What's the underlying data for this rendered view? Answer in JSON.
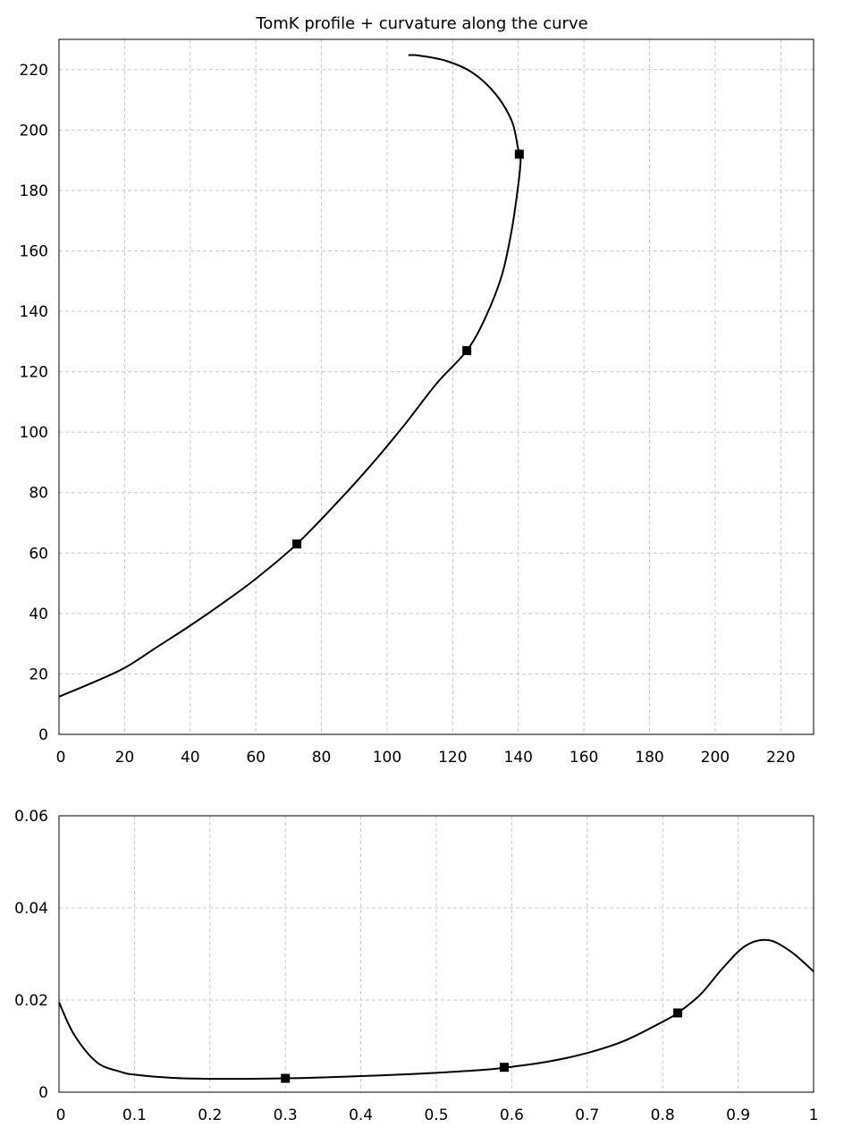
{
  "chart_data": [
    {
      "type": "line",
      "title": "TomK profile + curvature along the curve",
      "xlabel": "",
      "ylabel": "",
      "xlim": [
        0,
        230
      ],
      "ylim": [
        0,
        230
      ],
      "x_ticks": [
        "0",
        "20",
        "40",
        "60",
        "80",
        "100",
        "120",
        "140",
        "160",
        "180",
        "200",
        "220"
      ],
      "y_ticks": [
        "0",
        "20",
        "40",
        "60",
        "80",
        "100",
        "120",
        "140",
        "160",
        "180",
        "200",
        "220"
      ],
      "grid": true,
      "series": [
        {
          "x": [
            0,
            10,
            20,
            30,
            40,
            50,
            60,
            72.5,
            85,
            95,
            105,
            115,
            124.3,
            130,
            135,
            138,
            140,
            140.7,
            140.3,
            139.9,
            138,
            133,
            126,
            118,
            110,
            106.5
          ],
          "y": [
            12.5,
            17,
            22,
            29,
            36,
            43.5,
            51.5,
            63,
            77,
            89,
            102,
            116,
            127,
            138,
            152,
            167,
            182,
            190,
            192,
            194,
            203,
            212,
            219,
            222.9,
            224.6,
            224.8
          ]
        }
      ],
      "markers": {
        "x": [
          72.5,
          124.3,
          140.3
        ],
        "y": [
          63,
          127,
          192
        ]
      }
    },
    {
      "type": "line",
      "title": "",
      "xlabel": "",
      "ylabel": "",
      "xlim": [
        0,
        1
      ],
      "ylim": [
        0,
        0.06
      ],
      "x_ticks": [
        "0",
        "0.1",
        "0.2",
        "0.3",
        "0.4",
        "0.5",
        "0.6",
        "0.7",
        "0.8",
        "0.9",
        "1"
      ],
      "y_ticks": [
        "0",
        "0.02",
        "0.04",
        "0.06"
      ],
      "grid": true,
      "series": [
        {
          "x": [
            0,
            0.02,
            0.05,
            0.08,
            0.1,
            0.15,
            0.2,
            0.25,
            0.3,
            0.35,
            0.4,
            0.45,
            0.5,
            0.55,
            0.59,
            0.65,
            0.7,
            0.75,
            0.8,
            0.82,
            0.85,
            0.88,
            0.91,
            0.94,
            0.97,
            1.0
          ],
          "y": [
            0.0195,
            0.0125,
            0.0065,
            0.0045,
            0.0038,
            0.0031,
            0.0029,
            0.0029,
            0.003,
            0.0032,
            0.0035,
            0.0038,
            0.0042,
            0.0047,
            0.0053,
            0.0067,
            0.0085,
            0.0112,
            0.0153,
            0.0172,
            0.0212,
            0.027,
            0.0318,
            0.033,
            0.0305,
            0.0262
          ]
        }
      ],
      "markers": {
        "x": [
          0.3,
          0.59,
          0.82
        ],
        "y": [
          0.003,
          0.0054,
          0.0172
        ]
      }
    }
  ]
}
